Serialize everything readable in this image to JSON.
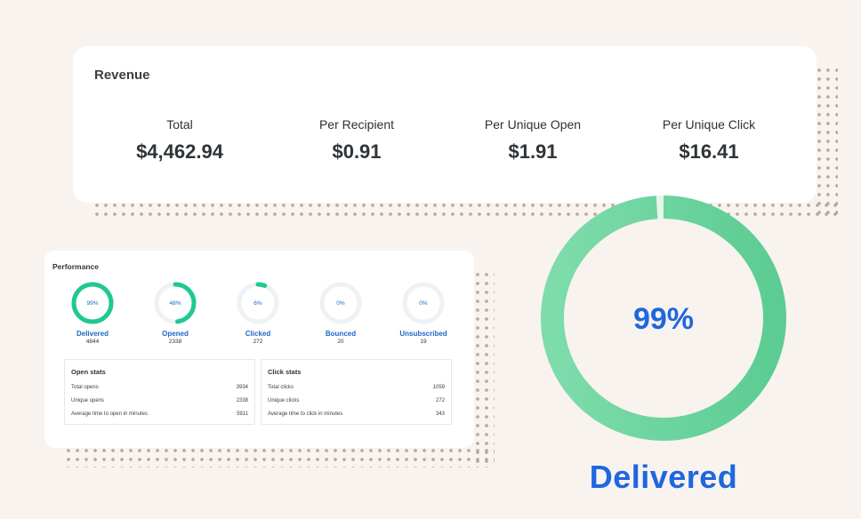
{
  "revenue": {
    "title": "Revenue",
    "metrics": [
      {
        "label": "Total",
        "value": "$4,462.94"
      },
      {
        "label": "Per Recipient",
        "value": "$0.91"
      },
      {
        "label": "Per Unique Open",
        "value": "$1.91"
      },
      {
        "label": "Per Unique Click",
        "value": "$16.41"
      }
    ]
  },
  "performance": {
    "title": "Performance",
    "gauges": [
      {
        "percent": 99,
        "percent_label": "99%",
        "label": "Delivered",
        "count": "4844"
      },
      {
        "percent": 48,
        "percent_label": "48%",
        "label": "Opened",
        "count": "2338"
      },
      {
        "percent": 6,
        "percent_label": "6%",
        "label": "Clicked",
        "count": "272"
      },
      {
        "percent": 0,
        "percent_label": "0%",
        "label": "Bounced",
        "count": "20"
      },
      {
        "percent": 0,
        "percent_label": "0%",
        "label": "Unsubscribed",
        "count": "19"
      }
    ],
    "open_stats": {
      "title": "Open stats",
      "rows": [
        {
          "label": "Total opens",
          "value": "3934"
        },
        {
          "label": "Unique opens",
          "value": "2338"
        },
        {
          "label": "Average time to open in minutes",
          "value": "5911"
        }
      ]
    },
    "click_stats": {
      "title": "Click stats",
      "rows": [
        {
          "label": "Total clicks",
          "value": "1059"
        },
        {
          "label": "Unique clicks",
          "value": "272"
        },
        {
          "label": "Average time to click in minutes",
          "value": "343"
        }
      ]
    }
  },
  "highlight": {
    "percent": 99,
    "percent_label": "99%",
    "label": "Delivered"
  },
  "colors": {
    "background": "#f8f3ef",
    "ring_green": "#63d29a",
    "ring_teal": "#1fc98f",
    "ring_track": "#eef2f5",
    "accent_blue": "#1f66e0",
    "label_blue": "#1f66c8"
  }
}
